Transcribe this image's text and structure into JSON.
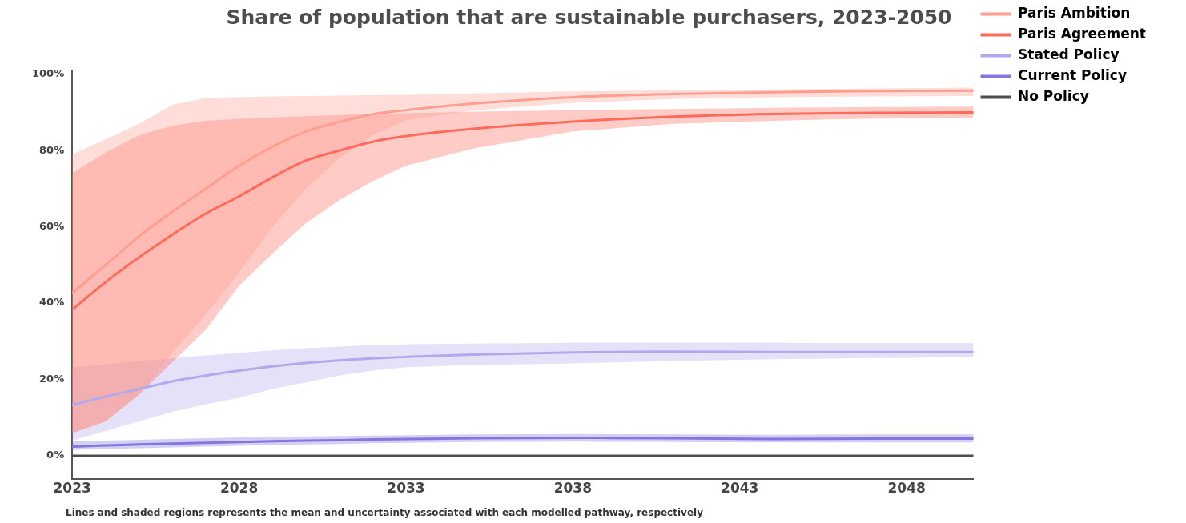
{
  "chart_data": {
    "type": "line",
    "title": "Share of population that are sustainable purchasers, 2023-2050",
    "annotations": [
      "Lines and shaded regions represents the mean and uncertainty associated with each modelled pathway, respectively"
    ],
    "x": [
      2023,
      2024,
      2025,
      2026,
      2027,
      2028,
      2029,
      2030,
      2031,
      2032,
      2033,
      2035,
      2038,
      2041,
      2044,
      2047,
      2050
    ],
    "xlim": [
      2023,
      2050
    ],
    "xticks": [
      2023,
      2028,
      2033,
      2038,
      2043,
      2048
    ],
    "ylim": [
      -6,
      101
    ],
    "yticks": [
      {
        "value": 0,
        "label": "0%"
      },
      {
        "value": 20,
        "label": "20%"
      },
      {
        "value": 40,
        "label": "40%"
      },
      {
        "value": 60,
        "label": "60%"
      },
      {
        "value": 80,
        "label": "80%"
      },
      {
        "value": 100,
        "label": "100%"
      }
    ],
    "grid": false,
    "legend": "right",
    "marker": "none",
    "line_style": "solid",
    "series": [
      {
        "name": "Paris Ambition",
        "color": "#ff9d8f",
        "values": [
          42.6,
          50,
          57.5,
          64,
          70,
          76,
          81,
          85,
          87.5,
          89.5,
          90.6,
          92.3,
          94,
          94.8,
          95.3,
          95.6,
          95.7
        ],
        "lower": [
          5.9,
          9,
          16,
          27,
          37,
          48,
          60,
          70,
          78,
          84,
          88,
          90.5,
          92.5,
          93.5,
          94,
          94.2,
          94.3
        ],
        "upper": [
          79,
          83,
          87,
          92,
          93.8,
          94,
          94.2,
          94.3,
          94.4,
          94.5,
          94.6,
          95,
          95.5,
          95.8,
          96,
          96.3,
          96.5
        ]
      },
      {
        "name": "Paris Agreement",
        "color": "#ff6b5b",
        "values": [
          38.3,
          45.5,
          52,
          58,
          63.5,
          68,
          73,
          77.4,
          80,
          82.3,
          83.8,
          85.7,
          87.6,
          88.9,
          89.6,
          89.9,
          90
        ],
        "lower": [
          5.9,
          9,
          16,
          24.5,
          33,
          44.5,
          53,
          61,
          67,
          72,
          76,
          80.5,
          85,
          87,
          87.8,
          88.4,
          88.7
        ],
        "upper": [
          74,
          79.5,
          84,
          86.5,
          87.8,
          88.3,
          88.7,
          89,
          89.3,
          89.6,
          89.8,
          90.2,
          90.6,
          90.9,
          91.2,
          91.4,
          91.5
        ]
      },
      {
        "name": "Stated Policy",
        "color": "#b3a8ee",
        "values": [
          13.3,
          15.5,
          17.5,
          19.5,
          21,
          22.3,
          23.4,
          24.3,
          25,
          25.5,
          25.9,
          26.5,
          27.1,
          27.3,
          27.2,
          27.2,
          27.2
        ],
        "lower": [
          4,
          6.5,
          9,
          11.5,
          13.5,
          15.2,
          17.5,
          19.2,
          21,
          22.3,
          23.2,
          23.8,
          24.2,
          24.8,
          25.3,
          25.6,
          25.8
        ],
        "upper": [
          23.1,
          24,
          24.8,
          25.5,
          26.3,
          27,
          27.6,
          28.2,
          28.6,
          29,
          29.2,
          29.4,
          29.6,
          29.6,
          29.6,
          29.5,
          29.5
        ]
      },
      {
        "name": "Current Policy",
        "color": "#8376e0",
        "values": [
          2.4,
          2.7,
          3,
          3.2,
          3.4,
          3.6,
          3.8,
          4,
          4.1,
          4.3,
          4.4,
          4.6,
          4.7,
          4.6,
          4.4,
          4.5,
          4.5
        ],
        "lower": [
          1.5,
          1.8,
          2,
          2.2,
          2.4,
          2.6,
          2.8,
          3,
          3.1,
          3.3,
          3.4,
          3.6,
          3.7,
          3.6,
          3.5,
          3.5,
          3.5
        ],
        "upper": [
          3.8,
          4,
          4.2,
          4.4,
          4.6,
          4.8,
          5,
          5.1,
          5.2,
          5.3,
          5.4,
          5.6,
          5.7,
          5.6,
          5.5,
          5.6,
          5.6
        ]
      },
      {
        "name": "No Policy",
        "color": "#4d4d4d",
        "values": [
          0,
          0,
          0,
          0,
          0,
          0,
          0,
          0,
          0,
          0,
          0,
          0,
          0,
          0,
          0,
          0,
          0
        ]
      }
    ]
  }
}
